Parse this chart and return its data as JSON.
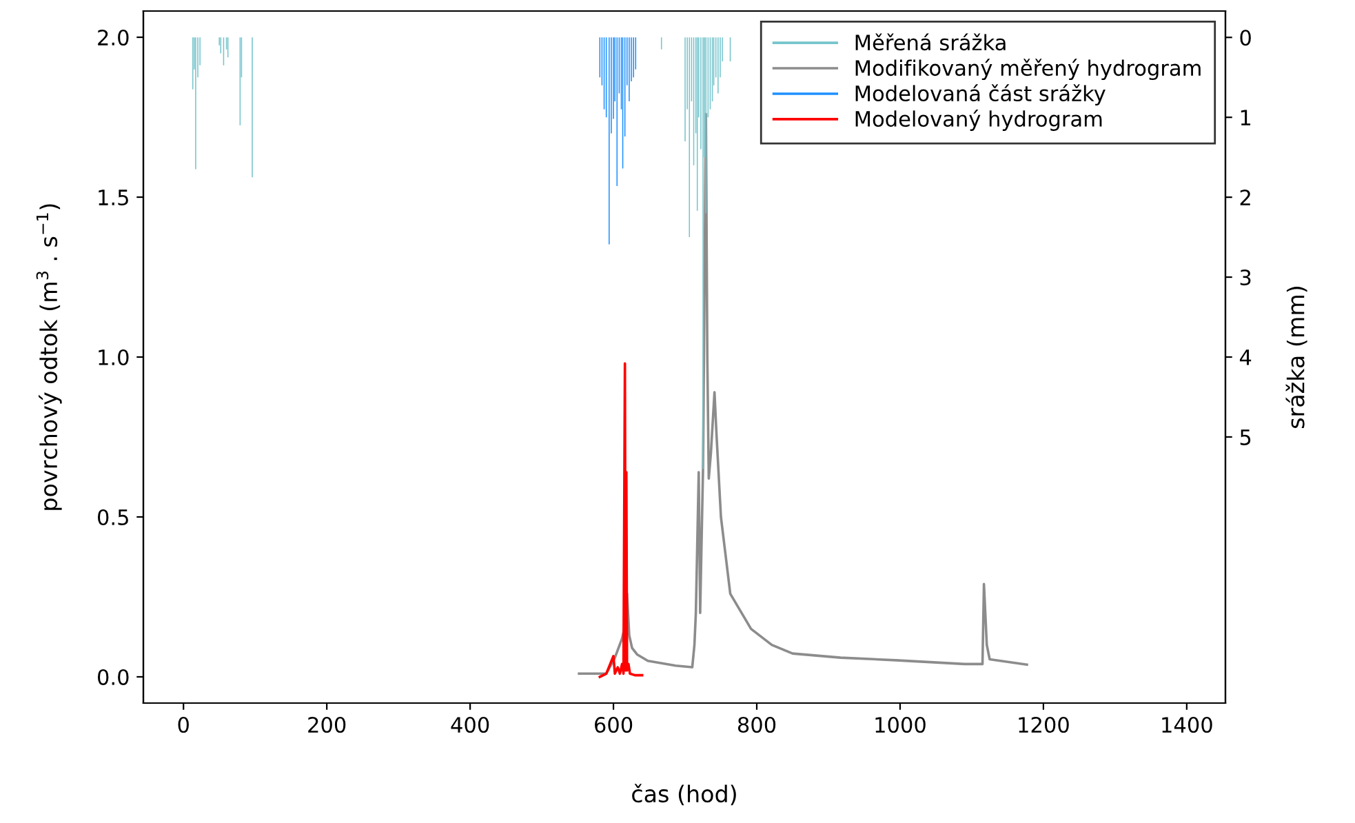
{
  "chart_data": {
    "type": "line",
    "xlabel": "čas (hod)",
    "ylabel": "povrchový odtok (m$^{3}$ . s$^{−1}$)",
    "y2label": "srážka (mm)",
    "xlim": [
      -56,
      1454
    ],
    "xticks": [
      0,
      200,
      400,
      600,
      800,
      1000,
      1200,
      1400
    ],
    "ylim": [
      -0.082,
      2.082
    ],
    "yticks": [
      {
        "value": 0,
        "label": "0.0"
      },
      0.5,
      {
        "value": 1,
        "label": "1.0"
      },
      1.5,
      {
        "value": 2,
        "label": "2.0"
      }
    ],
    "y2lim": [
      8.33,
      -0.33
    ],
    "y2ticks": [
      0,
      1,
      2,
      3,
      4,
      5
    ],
    "legend": "top right",
    "grid": false,
    "series": [
      {
        "name": "Měřená srážka",
        "type": "bar",
        "axis": "y2",
        "color": "#76c5cc",
        "x": [
          13,
          15,
          17,
          20,
          23,
          50,
          52,
          56,
          60,
          62,
          79,
          81,
          96,
          667,
          700,
          703,
          706,
          709,
          712,
          715,
          717,
          719,
          722,
          725,
          727,
          729,
          732,
          735,
          738,
          740,
          743,
          746,
          749,
          752,
          763
        ],
        "values": [
          0.65,
          0.4,
          1.65,
          0.5,
          0.35,
          0.1,
          0.2,
          0.35,
          0.15,
          0.25,
          1.1,
          0.5,
          1.75,
          0.15,
          1.3,
          0.9,
          2.5,
          0.8,
          1.6,
          1.2,
          2.17,
          1.0,
          1.4,
          5.4,
          1.5,
          2.2,
          1.0,
          0.9,
          0.8,
          0.6,
          0.5,
          0.7,
          0.5,
          0.3,
          0.3
        ]
      },
      {
        "name": "Modifikovaný měřený hydrogram",
        "color": "#8c8c8c",
        "x": [
          552,
          590,
          602,
          612,
          615,
          619,
          622,
          626,
          633,
          648,
          687,
          710,
          713,
          715,
          719,
          721,
          725,
          729,
          731,
          733,
          736,
          741,
          744,
          750,
          763,
          792,
          821,
          850,
          917,
          994,
          1090,
          1115,
          1117,
          1121,
          1125,
          1177
        ],
        "values": [
          0.01,
          0.01,
          0.06,
          0.12,
          0.15,
          0.26,
          0.13,
          0.09,
          0.07,
          0.05,
          0.035,
          0.03,
          0.1,
          0.2,
          0.64,
          0.2,
          0.65,
          1.76,
          1.0,
          0.62,
          0.7,
          0.89,
          0.75,
          0.5,
          0.26,
          0.15,
          0.1,
          0.073,
          0.06,
          0.052,
          0.04,
          0.04,
          0.29,
          0.1,
          0.055,
          0.038
        ]
      },
      {
        "name": "Modelovaná část srážky",
        "type": "bar",
        "axis": "y2",
        "color": "#1e90ff",
        "x": [
          581,
          584,
          587,
          590,
          594,
          597,
          600,
          602,
          605,
          608,
          611,
          613,
          616,
          619,
          622,
          625,
          628,
          631
        ],
        "values": [
          0.5,
          0.6,
          0.9,
          1.0,
          2.59,
          1.2,
          1.02,
          0.8,
          1.86,
          0.7,
          0.9,
          1.64,
          1.24,
          0.6,
          0.8,
          0.55,
          0.5,
          0.4
        ]
      },
      {
        "name": "Modelovaný hydrogram",
        "color": "#ff0000",
        "x": [
          581,
          590,
          600,
          602,
          606,
          609,
          612,
          614,
          616,
          617,
          618,
          619,
          621,
          623,
          630,
          640
        ],
        "values": [
          0.0,
          0.01,
          0.065,
          0.01,
          0.03,
          0.01,
          0.04,
          0.01,
          0.98,
          0.02,
          0.64,
          0.02,
          0.04,
          0.01,
          0.005,
          0.005
        ]
      }
    ]
  }
}
